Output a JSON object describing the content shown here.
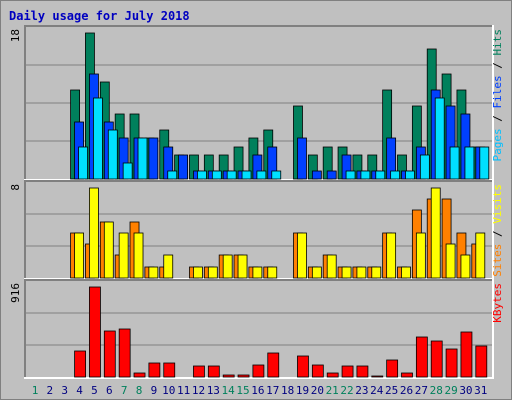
{
  "chart_data": {
    "type": "bar",
    "title": "Daily usage for July 2018",
    "days": [
      "1",
      "2",
      "3",
      "4",
      "5",
      "6",
      "7",
      "8",
      "9",
      "10",
      "11",
      "12",
      "13",
      "14",
      "15",
      "16",
      "17",
      "18",
      "19",
      "20",
      "21",
      "22",
      "23",
      "24",
      "25",
      "26",
      "27",
      "28",
      "29",
      "30",
      "31"
    ],
    "weekend_days": [
      "1",
      "7",
      "8",
      "14",
      "15",
      "21",
      "22",
      "28",
      "29"
    ],
    "panels": [
      {
        "max_label": "18",
        "ymax": 18,
        "legend": [
          {
            "text": "Pages",
            "color": "#00c0ff"
          },
          {
            "text": " / ",
            "color": "#000000"
          },
          {
            "text": "Files",
            "color": "#0040ff"
          },
          {
            "text": " / ",
            "color": "#000000"
          },
          {
            "text": "Hits",
            "color": "#00805c"
          }
        ],
        "series": [
          {
            "color": "#00805c",
            "values": [
              0,
              0,
              0,
              11,
              18,
              12,
              8,
              8,
              5,
              6,
              3,
              3,
              3,
              3,
              4,
              5,
              6,
              0,
              9,
              3,
              4,
              4,
              3,
              3,
              11,
              3,
              9,
              16,
              13,
              11,
              4
            ]
          },
          {
            "color": "#0040ff",
            "values": [
              0,
              0,
              0,
              7,
              13,
              7,
              5,
              5,
              5,
              4,
              3,
              1,
              1,
              1,
              1,
              3,
              4,
              0,
              5,
              1,
              1,
              3,
              1,
              1,
              5,
              1,
              4,
              11,
              9,
              8,
              4
            ]
          },
          {
            "color": "#00e0ff",
            "values": [
              0,
              0,
              0,
              4,
              10,
              6,
              2,
              5,
              0,
              1,
              0,
              1,
              1,
              1,
              1,
              1,
              1,
              0,
              0,
              0,
              0,
              1,
              1,
              1,
              1,
              1,
              3,
              10,
              4,
              4,
              4
            ]
          }
        ]
      },
      {
        "max_label": "8",
        "ymax": 8,
        "legend": [
          {
            "text": "Sites",
            "color": "#ff8000"
          },
          {
            "text": " / ",
            "color": "#000000"
          },
          {
            "text": "Visits",
            "color": "#ffff00"
          }
        ],
        "series": [
          {
            "color": "#ff8000",
            "values": [
              0,
              0,
              0,
              4,
              3,
              5,
              2,
              5,
              1,
              1,
              0,
              1,
              1,
              2,
              2,
              1,
              1,
              0,
              4,
              1,
              2,
              1,
              1,
              1,
              4,
              1,
              6,
              7,
              7,
              4,
              3
            ]
          },
          {
            "color": "#ffff00",
            "values": [
              0,
              0,
              0,
              4,
              8,
              5,
              4,
              4,
              1,
              2,
              0,
              1,
              1,
              2,
              2,
              1,
              1,
              0,
              4,
              1,
              2,
              1,
              1,
              1,
              4,
              1,
              4,
              8,
              3,
              2,
              4
            ]
          }
        ]
      },
      {
        "max_label": "916",
        "ymax": 916,
        "legend": [
          {
            "text": "KBytes",
            "color": "#ff0000"
          }
        ],
        "series": [
          {
            "color": "#ff0000",
            "values": [
              0,
              0,
              0,
              260,
              916,
              470,
              490,
              45,
              140,
              140,
              0,
              110,
              110,
              25,
              20,
              120,
              240,
              0,
              210,
              120,
              40,
              110,
              110,
              10,
              170,
              40,
              410,
              370,
              290,
              460,
              320
            ]
          }
        ]
      }
    ]
  }
}
